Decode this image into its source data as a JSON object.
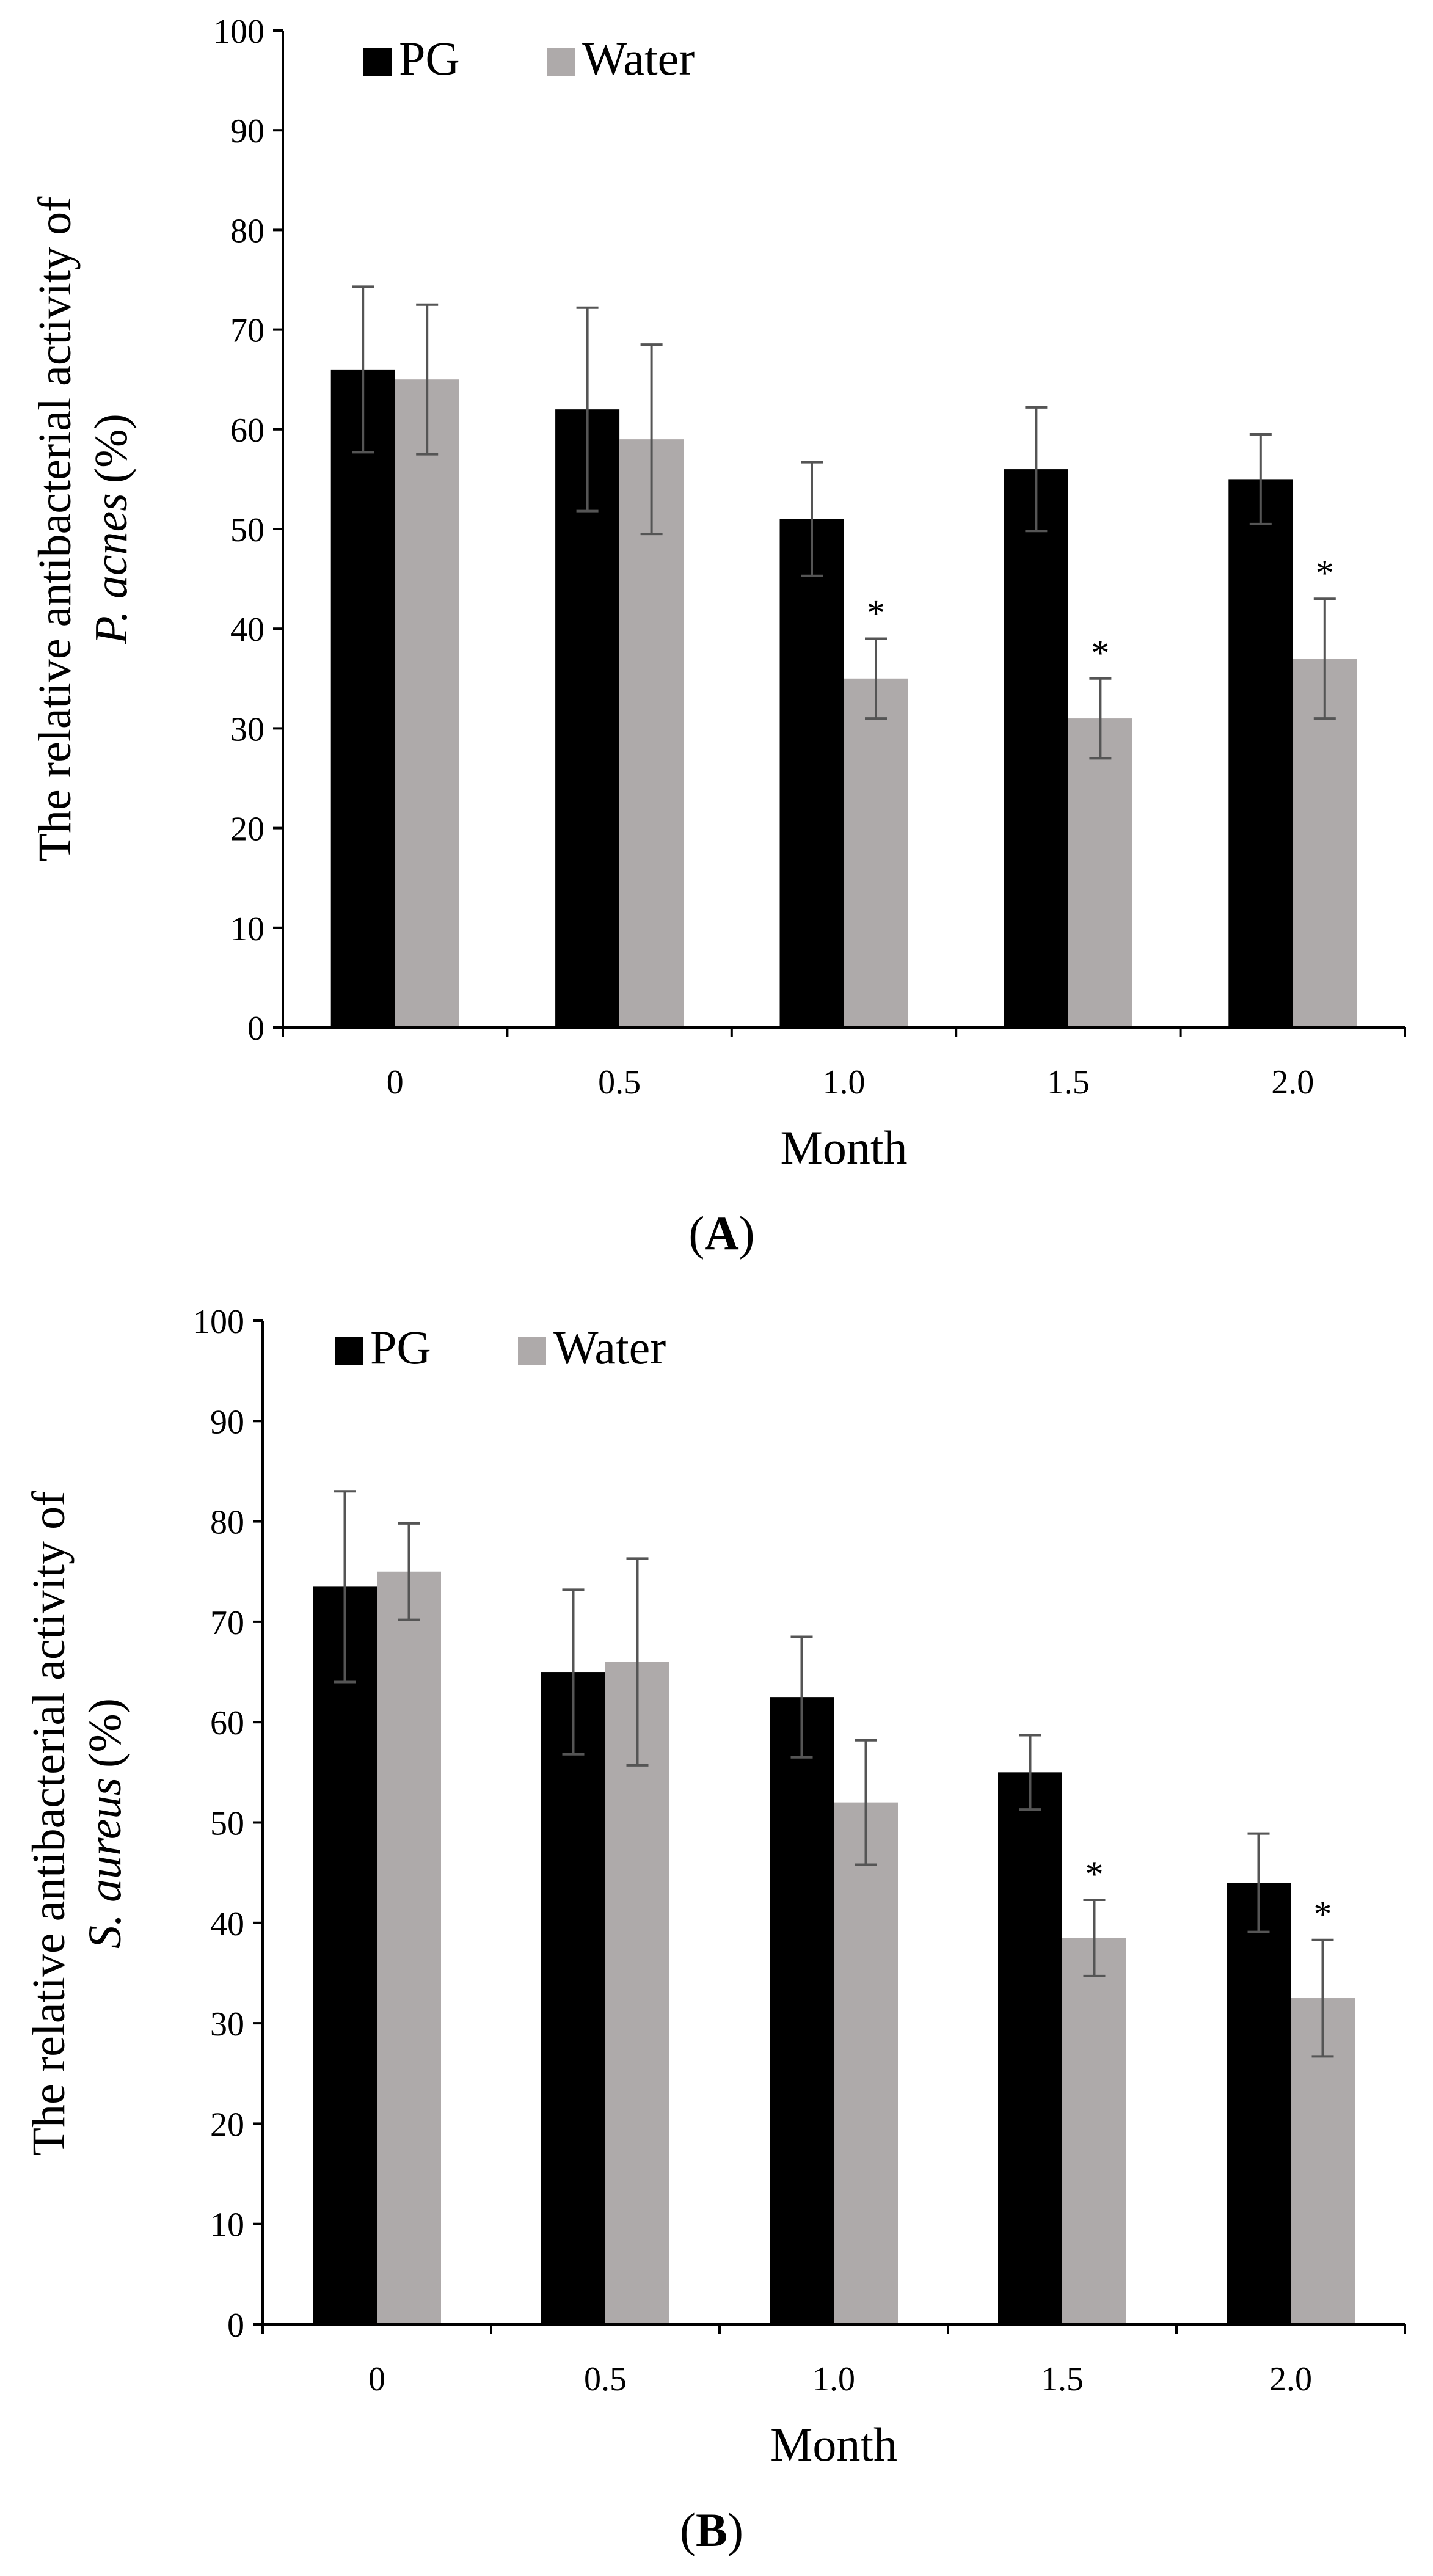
{
  "chart_data": [
    {
      "type": "bar",
      "panel_label": "A",
      "categories": [
        "0",
        "0.5",
        "1.0",
        "1.5",
        "2.0"
      ],
      "series": [
        {
          "name": "PG",
          "color": "#000000",
          "values": [
            66,
            62,
            51,
            56,
            55
          ],
          "errors": [
            8.3,
            10.2,
            5.7,
            6.2,
            4.5
          ],
          "significance": [
            "",
            "",
            "",
            "",
            ""
          ]
        },
        {
          "name": "Water",
          "color": "#aeaaaa",
          "values": [
            65,
            59,
            35,
            31,
            37
          ],
          "errors": [
            7.5,
            9.5,
            4.0,
            4.0,
            6.0
          ],
          "significance": [
            "",
            "",
            "*",
            "*",
            "*"
          ]
        }
      ],
      "xlabel": "Month",
      "ylabel_prefix": "The relative antibacterial activity of",
      "ylabel_organism": "P. acnes",
      "ylabel_suffix": "(%)",
      "ylim": [
        0,
        100
      ],
      "yticks": [
        0,
        10,
        20,
        30,
        40,
        50,
        60,
        70,
        80,
        90,
        100
      ],
      "legend_position": "top-left",
      "grid": false
    },
    {
      "type": "bar",
      "panel_label": "B",
      "categories": [
        "0",
        "0.5",
        "1.0",
        "1.5",
        "2.0"
      ],
      "series": [
        {
          "name": "PG",
          "color": "#000000",
          "values": [
            73.5,
            65,
            62.5,
            55,
            44
          ],
          "errors": [
            9.5,
            8.2,
            6.0,
            3.7,
            4.9
          ],
          "significance": [
            "",
            "",
            "",
            "",
            ""
          ]
        },
        {
          "name": "Water",
          "color": "#aeaaaa",
          "values": [
            75,
            66,
            52,
            38.5,
            32.5
          ],
          "errors": [
            4.8,
            10.3,
            6.2,
            3.8,
            5.8
          ],
          "significance": [
            "",
            "",
            "",
            "*",
            "*"
          ]
        }
      ],
      "xlabel": "Month",
      "ylabel_prefix": "The relative antibacterial activity of",
      "ylabel_organism": "S. aureus",
      "ylabel_suffix": "(%)",
      "ylim": [
        0,
        100
      ],
      "yticks": [
        0,
        10,
        20,
        30,
        40,
        50,
        60,
        70,
        80,
        90,
        100
      ],
      "legend_position": "top-left",
      "grid": false
    }
  ]
}
